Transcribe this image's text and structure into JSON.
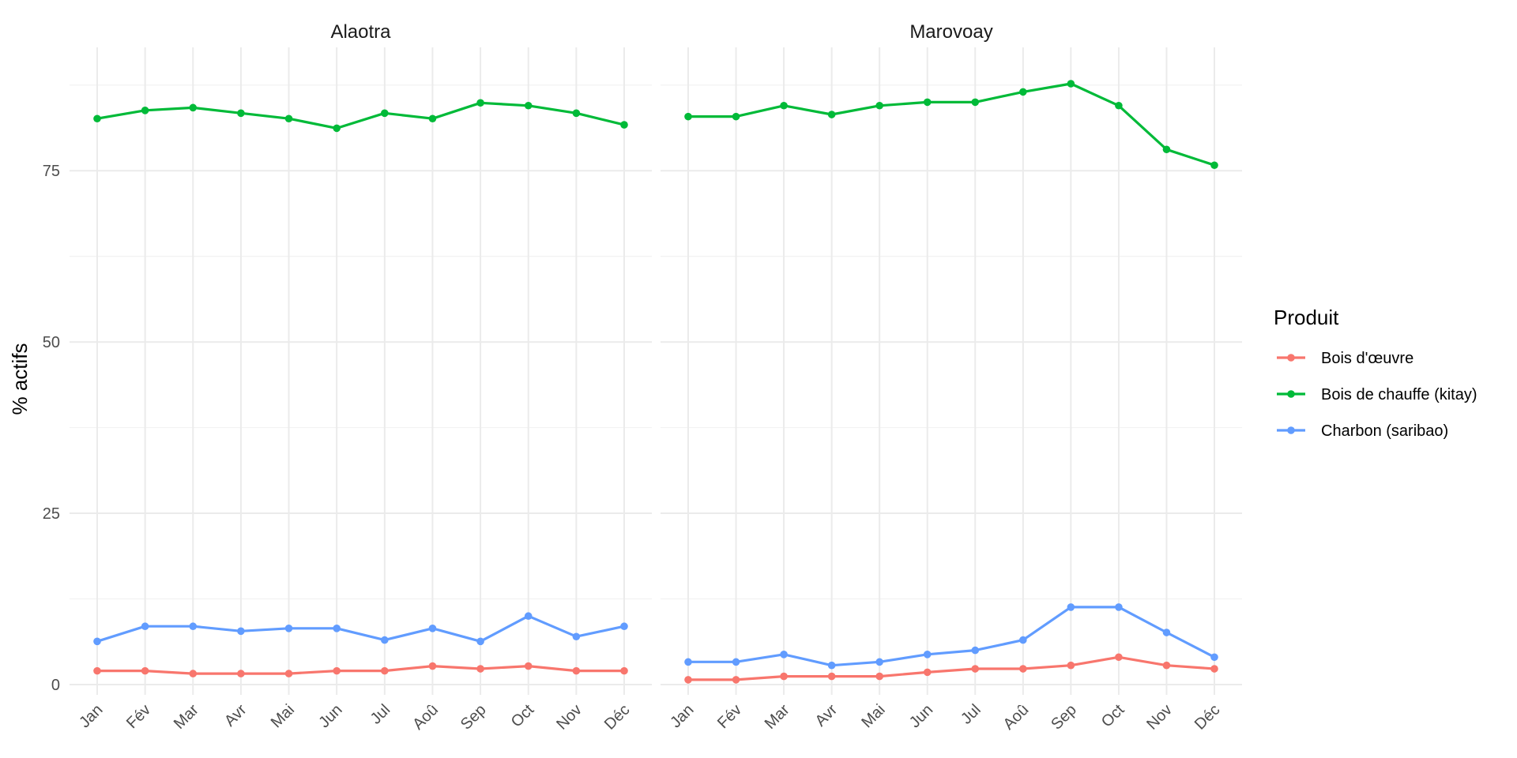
{
  "chart_data": {
    "type": "line",
    "ylabel": "% actifs",
    "yticks": [
      0,
      25,
      50,
      75
    ],
    "ylim": [
      -1.5,
      93
    ],
    "grid": true,
    "categories": [
      "Jan",
      "Fév",
      "Mar",
      "Avr",
      "Mai",
      "Jun",
      "Jul",
      "Aoû",
      "Sep",
      "Oct",
      "Nov",
      "Déc"
    ],
    "legend": {
      "title": "Produit",
      "placement": "right",
      "entries": [
        {
          "name": "Bois d'œuvre",
          "color": "#F8766D"
        },
        {
          "name": "Bois de chauffe (kitay)",
          "color": "#00BA38"
        },
        {
          "name": "Charbon (saribao)",
          "color": "#619CFF"
        }
      ]
    },
    "panels": [
      {
        "title": "Alaotra",
        "series": [
          {
            "name": "Bois d'œuvre",
            "color": "#F8766D",
            "values": [
              2.0,
              2.0,
              1.6,
              1.6,
              1.6,
              2.0,
              2.0,
              2.7,
              2.3,
              2.7,
              2.0,
              2.0
            ]
          },
          {
            "name": "Bois de chauffe (kitay)",
            "color": "#00BA38",
            "values": [
              82.6,
              83.8,
              84.2,
              83.4,
              82.6,
              81.2,
              83.4,
              82.6,
              84.9,
              84.5,
              83.4,
              81.7
            ]
          },
          {
            "name": "Charbon (saribao)",
            "color": "#619CFF",
            "values": [
              6.3,
              8.5,
              8.5,
              7.8,
              8.2,
              8.2,
              6.5,
              8.2,
              6.3,
              10.0,
              7.0,
              8.5
            ]
          }
        ]
      },
      {
        "title": "Marovoay",
        "series": [
          {
            "name": "Bois d'œuvre",
            "color": "#F8766D",
            "values": [
              0.7,
              0.7,
              1.2,
              1.2,
              1.2,
              1.8,
              2.3,
              2.3,
              2.8,
              4.0,
              2.8,
              2.3
            ]
          },
          {
            "name": "Bois de chauffe (kitay)",
            "color": "#00BA38",
            "values": [
              82.9,
              82.9,
              84.5,
              83.2,
              84.5,
              85.0,
              85.0,
              86.5,
              87.7,
              84.5,
              78.1,
              75.8
            ]
          },
          {
            "name": "Charbon (saribao)",
            "color": "#619CFF",
            "values": [
              3.3,
              3.3,
              4.4,
              2.8,
              3.3,
              4.4,
              5.0,
              6.5,
              11.3,
              11.3,
              7.6,
              4.0
            ]
          }
        ]
      }
    ]
  }
}
